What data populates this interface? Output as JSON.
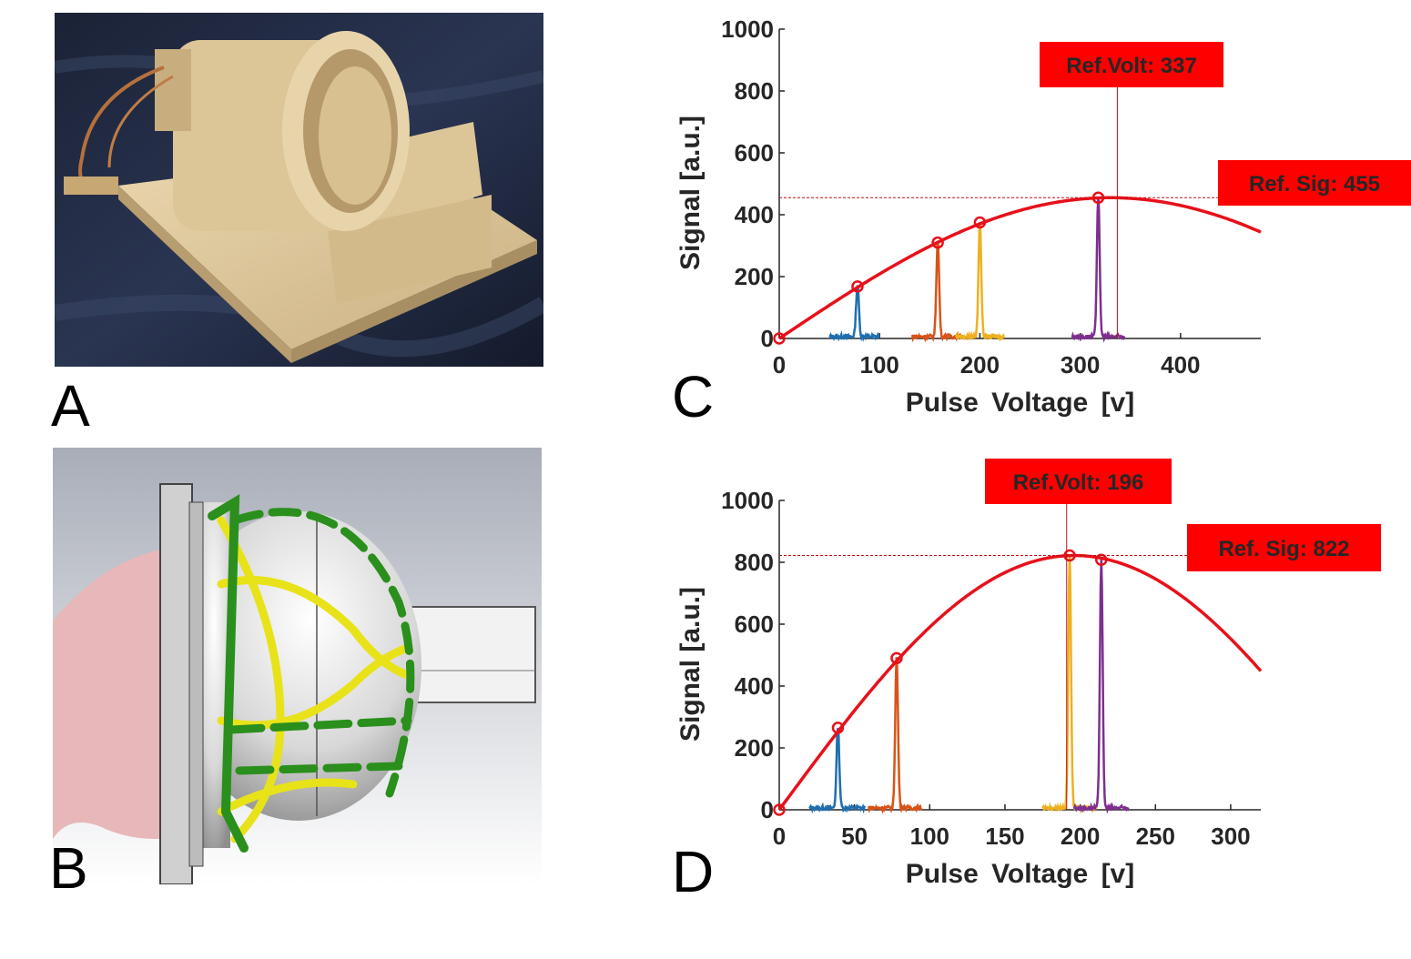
{
  "panels": {
    "a_label": "A",
    "b_label": "B",
    "c_label": "C",
    "d_label": "D"
  },
  "colors": {
    "fit_curve": "#e8101a",
    "ref_box": "#ff0000",
    "series": [
      "#1f6fb0",
      "#d95319",
      "#edb120",
      "#7e2f8e"
    ]
  },
  "chart_data": [
    {
      "id": "C",
      "type": "line",
      "xlabel": "Pulse Voltage [v]",
      "ylabel": "Signal [a.u.]",
      "xlim": [
        0,
        480
      ],
      "ylim": [
        0,
        1000
      ],
      "xticks": [
        0,
        100,
        200,
        300,
        400
      ],
      "yticks": [
        0,
        200,
        400,
        600,
        800,
        1000
      ],
      "fit_curve": {
        "peak_x": 330,
        "peak_y": 455,
        "x_end": 480
      },
      "markers": [
        {
          "x": 0,
          "y": 0
        },
        {
          "x": 78,
          "y": 168
        },
        {
          "x": 158,
          "y": 310
        },
        {
          "x": 200,
          "y": 375
        },
        {
          "x": 318,
          "y": 455
        }
      ],
      "series": [
        {
          "center": 78,
          "peak": 168,
          "x_from": 50,
          "x_to": 100
        },
        {
          "center": 158,
          "peak": 310,
          "x_from": 132,
          "x_to": 182
        },
        {
          "center": 200,
          "peak": 375,
          "x_from": 176,
          "x_to": 224
        },
        {
          "center": 318,
          "peak": 455,
          "x_from": 292,
          "x_to": 344
        }
      ],
      "ref_volt": {
        "label": "Ref.Volt: 337",
        "value": 337
      },
      "ref_sig": {
        "label": "Ref. Sig: 455",
        "value": 455
      }
    },
    {
      "id": "D",
      "type": "line",
      "xlabel": "Pulse Voltage [v]",
      "ylabel": "Signal [a.u.]",
      "xlim": [
        0,
        320
      ],
      "ylim": [
        0,
        1000
      ],
      "xticks": [
        0,
        50,
        100,
        150,
        200,
        250,
        300
      ],
      "yticks": [
        0,
        200,
        400,
        600,
        800,
        1000
      ],
      "fit_curve": {
        "peak_x": 196,
        "peak_y": 822,
        "x_end": 320
      },
      "markers": [
        {
          "x": 0,
          "y": 0
        },
        {
          "x": 39,
          "y": 265
        },
        {
          "x": 78,
          "y": 490
        },
        {
          "x": 193,
          "y": 822
        },
        {
          "x": 214,
          "y": 808
        }
      ],
      "series": [
        {
          "center": 39,
          "peak": 265,
          "x_from": 20,
          "x_to": 57
        },
        {
          "center": 78,
          "peak": 490,
          "x_from": 59,
          "x_to": 95
        },
        {
          "center": 193,
          "peak": 822,
          "x_from": 175,
          "x_to": 211
        },
        {
          "center": 214,
          "peak": 808,
          "x_from": 196,
          "x_to": 232
        }
      ],
      "ref_volt": {
        "label": "Ref.Volt: 196",
        "value": 196
      },
      "ref_sig": {
        "label": "Ref. Sig: 822",
        "value": 822
      }
    }
  ]
}
